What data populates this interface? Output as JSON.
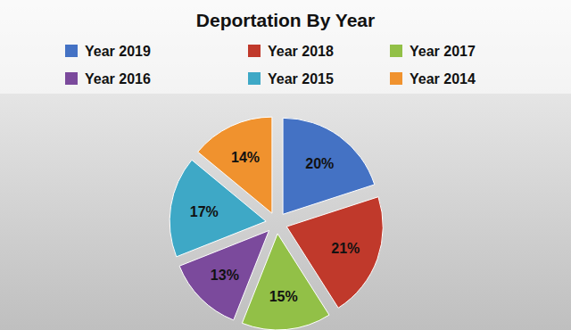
{
  "chart_data": {
    "type": "pie",
    "title": "Deportation By Year",
    "categories": [
      "Year 2019",
      "Year 2018",
      "Year 2017",
      "Year 2016",
      "Year 2015",
      "Year 2014"
    ],
    "values": [
      20,
      21,
      15,
      13,
      17,
      14
    ],
    "value_labels": [
      "20%",
      "21%",
      "15%",
      "13%",
      "17%",
      "14%"
    ],
    "colors": [
      "#4472c4",
      "#c0392b",
      "#92c047",
      "#7b4a9c",
      "#3ea8c6",
      "#f0922e"
    ],
    "data_labels": true,
    "legend": "top"
  }
}
